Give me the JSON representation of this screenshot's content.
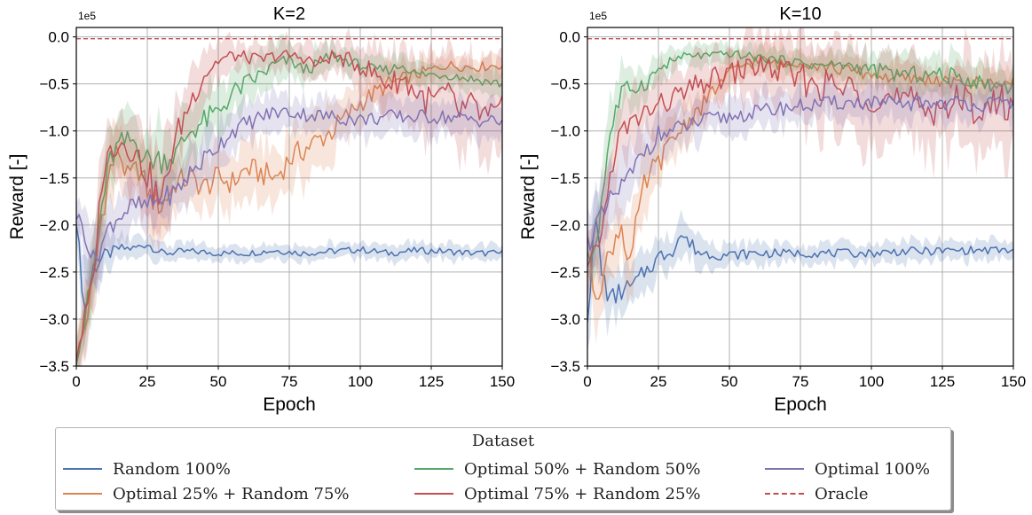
{
  "chart_data": [
    {
      "type": "line",
      "title": "K=2",
      "xlabel": "Epoch",
      "ylabel": "Reward [-]",
      "y_multiplier_label": "1e5",
      "xlim": [
        0,
        150
      ],
      "ylim": [
        -3.5,
        0.1
      ],
      "xticks": [
        "0",
        "25",
        "50",
        "75",
        "100",
        "125",
        "150"
      ],
      "yticks": [
        "0.0",
        "−0.5",
        "−1.0",
        "−1.5",
        "−2.0",
        "−2.5",
        "−3.0",
        "−3.5"
      ],
      "grid": true,
      "series": [
        {
          "name": "Random 100%",
          "color": "#4c72b0",
          "x": [
            0,
            3,
            6,
            9,
            12,
            15,
            20,
            25,
            30,
            40,
            50,
            60,
            70,
            80,
            90,
            100,
            110,
            120,
            130,
            140,
            150
          ],
          "y": [
            -1.95,
            -2.9,
            -2.45,
            -2.35,
            -2.3,
            -2.25,
            -2.25,
            -2.2,
            -2.3,
            -2.28,
            -2.3,
            -2.3,
            -2.27,
            -2.3,
            -2.28,
            -2.26,
            -2.3,
            -2.27,
            -2.28,
            -2.3,
            -2.3
          ],
          "band": [
            0.12,
            0.45,
            0.3,
            0.2,
            0.15,
            0.12,
            0.1,
            0.1,
            0.1,
            0.08,
            0.08,
            0.08,
            0.08,
            0.08,
            0.08,
            0.08,
            0.08,
            0.08,
            0.08,
            0.08,
            0.08
          ]
        },
        {
          "name": "Optimal 25% + Random 75%",
          "color": "#dd8452",
          "x": [
            0,
            3,
            6,
            9,
            12,
            15,
            18,
            22,
            26,
            30,
            35,
            40,
            45,
            50,
            55,
            60,
            65,
            70,
            75,
            80,
            85,
            90,
            95,
            100,
            110,
            120,
            130,
            140,
            150
          ],
          "y": [
            -3.4,
            -3.1,
            -2.6,
            -1.9,
            -1.4,
            -1.2,
            -1.5,
            -1.4,
            -1.7,
            -1.8,
            -1.55,
            -1.5,
            -1.6,
            -1.5,
            -1.55,
            -1.4,
            -1.45,
            -1.5,
            -1.3,
            -1.2,
            -1.1,
            -1.0,
            -0.85,
            -0.7,
            -0.5,
            -0.4,
            -0.3,
            -0.32,
            -0.3
          ],
          "band": [
            0.2,
            0.25,
            0.3,
            0.35,
            0.4,
            0.35,
            0.3,
            0.3,
            0.35,
            0.35,
            0.3,
            0.3,
            0.3,
            0.3,
            0.3,
            0.3,
            0.3,
            0.3,
            0.3,
            0.3,
            0.3,
            0.3,
            0.25,
            0.25,
            0.2,
            0.15,
            0.12,
            0.12,
            0.12
          ]
        },
        {
          "name": "Optimal 50% + Random 50%",
          "color": "#55a868",
          "x": [
            0,
            3,
            6,
            9,
            12,
            15,
            20,
            25,
            30,
            35,
            40,
            45,
            50,
            55,
            60,
            65,
            70,
            75,
            80,
            85,
            90,
            95,
            100,
            105,
            110,
            115,
            120,
            130,
            140,
            150
          ],
          "y": [
            -3.4,
            -3.0,
            -2.5,
            -1.8,
            -1.3,
            -1.15,
            -1.1,
            -1.3,
            -1.3,
            -1.25,
            -1.0,
            -0.9,
            -0.8,
            -0.6,
            -0.5,
            -0.4,
            -0.3,
            -0.25,
            -0.35,
            -0.3,
            -0.2,
            -0.25,
            -0.3,
            -0.35,
            -0.35,
            -0.3,
            -0.4,
            -0.4,
            -0.45,
            -0.5
          ],
          "band": [
            0.2,
            0.3,
            0.35,
            0.35,
            0.3,
            0.3,
            0.3,
            0.3,
            0.35,
            0.3,
            0.3,
            0.3,
            0.3,
            0.25,
            0.25,
            0.2,
            0.2,
            0.15,
            0.15,
            0.15,
            0.15,
            0.12,
            0.12,
            0.12,
            0.12,
            0.12,
            0.12,
            0.12,
            0.12,
            0.12
          ]
        },
        {
          "name": "Optimal 75% + Random 25%",
          "color": "#c44e52",
          "x": [
            0,
            3,
            6,
            9,
            12,
            15,
            20,
            25,
            30,
            33,
            36,
            40,
            45,
            50,
            55,
            60,
            65,
            70,
            75,
            80,
            85,
            90,
            95,
            100,
            105,
            110,
            115,
            120,
            125,
            130,
            135,
            140,
            145,
            150
          ],
          "y": [
            -3.4,
            -3.0,
            -2.6,
            -1.5,
            -1.2,
            -1.1,
            -1.2,
            -1.45,
            -1.8,
            -1.3,
            -1.0,
            -0.7,
            -0.4,
            -0.25,
            -0.2,
            -0.22,
            -0.25,
            -0.2,
            -0.2,
            -0.22,
            -0.3,
            -0.2,
            -0.25,
            -0.3,
            -0.4,
            -0.5,
            -0.45,
            -0.6,
            -0.7,
            -0.6,
            -0.8,
            -0.75,
            -0.9,
            -0.85
          ],
          "band": [
            0.2,
            0.3,
            0.35,
            0.35,
            0.35,
            0.3,
            0.35,
            0.4,
            0.5,
            0.4,
            0.35,
            0.3,
            0.25,
            0.2,
            0.15,
            0.15,
            0.15,
            0.15,
            0.15,
            0.15,
            0.2,
            0.15,
            0.2,
            0.25,
            0.3,
            0.3,
            0.3,
            0.35,
            0.4,
            0.35,
            0.45,
            0.4,
            0.5,
            0.5
          ]
        },
        {
          "name": "Optimal 100%",
          "color": "#8172b2",
          "x": [
            0,
            3,
            6,
            9,
            12,
            15,
            20,
            25,
            30,
            35,
            40,
            45,
            50,
            55,
            60,
            65,
            70,
            75,
            80,
            90,
            100,
            110,
            120,
            130,
            140,
            150
          ],
          "y": [
            -1.9,
            -2.05,
            -2.4,
            -2.2,
            -2.0,
            -1.9,
            -1.8,
            -1.8,
            -1.72,
            -1.65,
            -1.45,
            -1.3,
            -1.15,
            -1.0,
            -0.92,
            -0.85,
            -0.8,
            -0.8,
            -0.82,
            -0.85,
            -0.88,
            -0.85,
            -0.85,
            -0.85,
            -0.88,
            -0.9
          ],
          "band": [
            0.15,
            0.3,
            0.3,
            0.25,
            0.25,
            0.25,
            0.25,
            0.25,
            0.25,
            0.25,
            0.25,
            0.25,
            0.22,
            0.2,
            0.2,
            0.2,
            0.18,
            0.18,
            0.18,
            0.18,
            0.18,
            0.18,
            0.18,
            0.18,
            0.18,
            0.18
          ]
        },
        {
          "name": "Oracle",
          "color": "#c44e52",
          "dashed": true,
          "x": [
            0,
            150
          ],
          "y": [
            -0.02,
            -0.02
          ]
        }
      ]
    },
    {
      "type": "line",
      "title": "K=10",
      "xlabel": "Epoch",
      "ylabel": "Reward [-]",
      "y_multiplier_label": "1e5",
      "xlim": [
        0,
        150
      ],
      "ylim": [
        -3.5,
        0.1
      ],
      "xticks": [
        "0",
        "25",
        "50",
        "75",
        "100",
        "125",
        "150"
      ],
      "yticks": [
        "0.0",
        "−0.5",
        "−1.0",
        "−1.5",
        "−2.0",
        "−2.5",
        "−3.0",
        "−3.5"
      ],
      "grid": true,
      "series": [
        {
          "name": "Random 100%",
          "color": "#4c72b0",
          "x": [
            0,
            3,
            5,
            8,
            12,
            16,
            20,
            25,
            30,
            33,
            36,
            40,
            50,
            60,
            70,
            80,
            90,
            100,
            110,
            120,
            130,
            140,
            150
          ],
          "y": [
            -2.9,
            -1.95,
            -2.5,
            -2.8,
            -2.7,
            -2.65,
            -2.5,
            -2.35,
            -2.25,
            -2.1,
            -2.2,
            -2.3,
            -2.32,
            -2.3,
            -2.3,
            -2.3,
            -2.3,
            -2.3,
            -2.28,
            -2.28,
            -2.27,
            -2.27,
            -2.27
          ],
          "band": [
            0.4,
            0.3,
            0.3,
            0.25,
            0.25,
            0.2,
            0.2,
            0.2,
            0.2,
            0.2,
            0.18,
            0.15,
            0.12,
            0.12,
            0.1,
            0.1,
            0.1,
            0.1,
            0.1,
            0.1,
            0.1,
            0.1,
            0.1
          ]
        },
        {
          "name": "Optimal 25% + Random 75%",
          "color": "#dd8452",
          "x": [
            0,
            3,
            6,
            9,
            12,
            15,
            18,
            20,
            23,
            26,
            30,
            35,
            40,
            45,
            50,
            55,
            60,
            65,
            70,
            75,
            80,
            90,
            100,
            110,
            120,
            130,
            140,
            150
          ],
          "y": [
            -2.4,
            -2.7,
            -2.5,
            -2.2,
            -2.0,
            -2.4,
            -1.9,
            -1.6,
            -1.4,
            -1.3,
            -1.1,
            -0.9,
            -0.75,
            -0.55,
            -0.4,
            -0.3,
            -0.25,
            -0.28,
            -0.3,
            -0.25,
            -0.3,
            -0.35,
            -0.4,
            -0.45,
            -0.45,
            -0.5,
            -0.48,
            -0.5
          ],
          "band": [
            0.3,
            0.35,
            0.35,
            0.3,
            0.3,
            0.45,
            0.3,
            0.3,
            0.25,
            0.25,
            0.25,
            0.25,
            0.2,
            0.2,
            0.18,
            0.15,
            0.15,
            0.15,
            0.15,
            0.15,
            0.15,
            0.15,
            0.15,
            0.15,
            0.15,
            0.15,
            0.15,
            0.15
          ]
        },
        {
          "name": "Optimal 50% + Random 50%",
          "color": "#55a868",
          "x": [
            0,
            3,
            6,
            8,
            10,
            12,
            15,
            20,
            25,
            30,
            35,
            40,
            45,
            50,
            55,
            60,
            70,
            80,
            90,
            100,
            110,
            120,
            130,
            140,
            150
          ],
          "y": [
            -2.4,
            -2.2,
            -1.5,
            -1.0,
            -0.8,
            -0.6,
            -0.55,
            -0.5,
            -0.35,
            -0.25,
            -0.2,
            -0.2,
            -0.2,
            -0.18,
            -0.2,
            -0.22,
            -0.25,
            -0.3,
            -0.3,
            -0.35,
            -0.4,
            -0.4,
            -0.42,
            -0.5,
            -0.52
          ],
          "band": [
            0.3,
            0.3,
            0.35,
            0.35,
            0.3,
            0.25,
            0.2,
            0.2,
            0.15,
            0.12,
            0.1,
            0.1,
            0.1,
            0.1,
            0.1,
            0.1,
            0.1,
            0.12,
            0.15,
            0.18,
            0.2,
            0.2,
            0.2,
            0.2,
            0.2
          ]
        },
        {
          "name": "Optimal 75% + Random 25%",
          "color": "#c44e52",
          "x": [
            0,
            3,
            6,
            9,
            12,
            15,
            20,
            25,
            30,
            35,
            40,
            45,
            50,
            55,
            60,
            70,
            80,
            90,
            100,
            110,
            120,
            130,
            140,
            150
          ],
          "y": [
            -2.5,
            -2.3,
            -1.9,
            -1.3,
            -1.0,
            -0.95,
            -0.8,
            -0.75,
            -0.65,
            -0.6,
            -0.5,
            -0.45,
            -0.4,
            -0.35,
            -0.3,
            -0.4,
            -0.5,
            -0.55,
            -0.6,
            -0.7,
            -0.75,
            -0.7,
            -0.75,
            -0.7
          ],
          "band": [
            0.3,
            0.3,
            0.3,
            0.3,
            0.3,
            0.3,
            0.3,
            0.3,
            0.3,
            0.3,
            0.3,
            0.3,
            0.3,
            0.3,
            0.3,
            0.35,
            0.4,
            0.45,
            0.45,
            0.45,
            0.45,
            0.45,
            0.45,
            0.45
          ]
        },
        {
          "name": "Optimal 100%",
          "color": "#8172b2",
          "x": [
            0,
            3,
            6,
            9,
            12,
            15,
            20,
            25,
            30,
            35,
            40,
            50,
            60,
            70,
            80,
            90,
            100,
            110,
            120,
            130,
            140,
            150
          ],
          "y": [
            -2.2,
            -2.0,
            -1.9,
            -1.7,
            -1.6,
            -1.5,
            -1.2,
            -1.05,
            -1.0,
            -0.95,
            -0.9,
            -0.85,
            -0.8,
            -0.75,
            -0.72,
            -0.7,
            -0.7,
            -0.72,
            -0.7,
            -0.7,
            -0.72,
            -0.7
          ],
          "band": [
            0.3,
            0.3,
            0.3,
            0.3,
            0.3,
            0.3,
            0.25,
            0.25,
            0.2,
            0.2,
            0.2,
            0.18,
            0.18,
            0.18,
            0.18,
            0.18,
            0.18,
            0.18,
            0.18,
            0.18,
            0.18,
            0.18
          ]
        },
        {
          "name": "Oracle",
          "color": "#c44e52",
          "dashed": true,
          "x": [
            0,
            150
          ],
          "y": [
            -0.02,
            -0.02
          ]
        }
      ]
    }
  ],
  "legend": {
    "title": "Dataset",
    "placement": "bottom-center",
    "items": [
      {
        "label": "Random 100%",
        "color": "#4c72b0",
        "dashed": false
      },
      {
        "label": "Optimal 25% + Random 75%",
        "color": "#dd8452",
        "dashed": false
      },
      {
        "label": "Optimal 50% + Random 50%",
        "color": "#55a868",
        "dashed": false
      },
      {
        "label": "Optimal 75% + Random 25%",
        "color": "#c44e52",
        "dashed": false
      },
      {
        "label": "Optimal 100%",
        "color": "#8172b2",
        "dashed": false
      },
      {
        "label": "Oracle",
        "color": "#c44e52",
        "dashed": true
      }
    ]
  }
}
